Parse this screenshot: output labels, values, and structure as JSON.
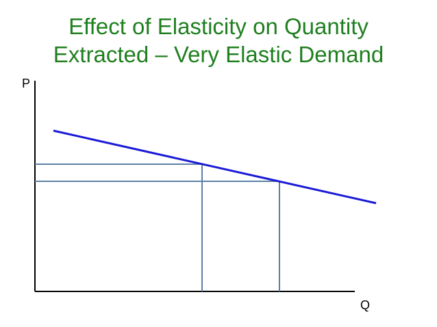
{
  "title": {
    "line1": "Effect of Elasticity on Quantity",
    "line2": "Extracted – Very Elastic Demand"
  },
  "axes": {
    "y_label": "P",
    "x_label": "Q"
  },
  "colors": {
    "title": "#1f7f1f",
    "demand_line": "#1a1ad6",
    "guide_lines": "#5b7fa6",
    "axis": "#000000"
  }
}
